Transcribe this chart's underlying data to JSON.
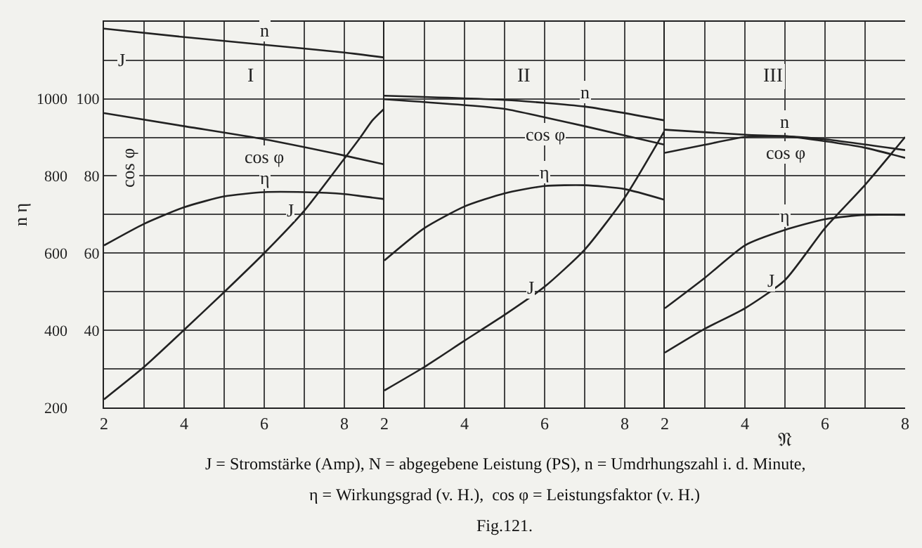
{
  "chart_data": [
    {
      "type": "line",
      "title": "I",
      "ylabel": "n η",
      "annotations": [
        "J",
        "cos φ"
      ],
      "xlim": [
        2,
        9
      ],
      "xticks": [
        2,
        {
          "value": 3,
          "label": null
        },
        4,
        {
          "value": 5,
          "label": null
        },
        6,
        {
          "value": 7,
          "label": null
        },
        8,
        {
          "value": 9,
          "label": null
        }
      ],
      "ylim": [
        200,
        1200
      ],
      "yticks": [
        200,
        {
          "value": 300,
          "label": null
        },
        400,
        {
          "value": 500,
          "label": null
        },
        600,
        {
          "value": 700,
          "label": null
        },
        800,
        {
          "value": 900,
          "label": null
        },
        1000,
        {
          "value": 1100,
          "label": null
        },
        {
          "value": 1200,
          "label": null
        }
      ],
      "y2lim": [
        20,
        120
      ],
      "y2ticks": [
        40,
        60,
        80,
        100
      ],
      "grid": true,
      "marker": "none",
      "line_style": "solid",
      "series": [
        {
          "name": "n",
          "color": "#222222",
          "x": [
            2,
            4,
            6,
            8,
            9
          ],
          "values": [
            1182,
            1160,
            1140,
            1120,
            1107
          ]
        },
        {
          "name": "cos φ",
          "color": "#222222",
          "axis": "y2",
          "x": [
            2,
            4,
            6,
            8,
            9
          ],
          "values": [
            96.3,
            92.9,
            89.5,
            85.3,
            83.0
          ]
        },
        {
          "name": "η",
          "color": "#222222",
          "axis": "y2",
          "x": [
            2,
            3,
            4,
            5,
            6,
            7,
            8,
            8.7,
            9
          ],
          "values": [
            62.0,
            67.6,
            71.9,
            74.7,
            75.8,
            75.8,
            75.3,
            74.4,
            74.0
          ]
        },
        {
          "name": "J",
          "color": "#222222",
          "x": [
            2,
            3,
            4,
            5,
            6,
            7,
            8,
            8.4,
            8.7,
            9
          ],
          "values": [
            221,
            305,
            401,
            499,
            600,
            710,
            845,
            900,
            944,
            975
          ]
        }
      ]
    },
    {
      "type": "line",
      "title": "II",
      "tick_labels": "x",
      "xlim": [
        2,
        9
      ],
      "xticks": [
        2,
        {
          "value": 3,
          "label": null
        },
        4,
        {
          "value": 5,
          "label": null
        },
        6,
        {
          "value": 7,
          "label": null
        },
        8,
        {
          "value": 9,
          "label": null
        }
      ],
      "ylim": [
        200,
        1200
      ],
      "yticks": [
        200,
        300,
        400,
        500,
        600,
        700,
        800,
        900,
        1000,
        1100,
        1200
      ],
      "y2lim": [
        20,
        120
      ],
      "y2ticks": [
        40,
        60,
        80,
        100
      ],
      "grid": true,
      "marker": "none",
      "line_style": "solid",
      "series": [
        {
          "name": "n",
          "color": "#222222",
          "x": [
            2,
            5,
            7,
            9
          ],
          "values": [
            1008,
            997,
            980,
            944
          ]
        },
        {
          "name": "cos φ",
          "color": "#222222",
          "axis": "y2",
          "x": [
            2,
            5,
            6,
            7,
            9
          ],
          "values": [
            99.9,
            97.4,
            95.2,
            92.9,
            88.1
          ]
        },
        {
          "name": "η",
          "color": "#222222",
          "axis": "y2",
          "x": [
            2,
            3,
            4,
            5,
            6,
            7,
            8,
            9
          ],
          "values": [
            58.1,
            66.5,
            72.1,
            75.5,
            77.4,
            77.6,
            76.6,
            73.8
          ]
        },
        {
          "name": "J",
          "color": "#222222",
          "x": [
            2,
            3,
            4,
            5,
            6,
            7,
            8,
            9
          ],
          "values": [
            244,
            305,
            373,
            440,
            513,
            609,
            744,
            918
          ]
        }
      ]
    },
    {
      "type": "line",
      "title": "III",
      "xlabel": "𝔑",
      "tick_labels": "x",
      "annotations": [
        "J = Stromstärke (Amp), N = abgegebene Leistung (PS), n = Umdrhungszahl i. d. Minute,",
        "η = Wirkungsgrad (v. H.),  cos φ = Leistungsfaktor (v. H.)",
        "Fig.121."
      ],
      "xlim": [
        2,
        8
      ],
      "xticks": [
        2,
        {
          "value": 3,
          "label": null
        },
        4,
        {
          "value": 5,
          "label": null
        },
        6,
        {
          "value": 7,
          "label": null
        },
        8
      ],
      "ylim": [
        200,
        1200
      ],
      "yticks": [
        200,
        300,
        400,
        500,
        600,
        700,
        800,
        900,
        1000,
        1100,
        1200
      ],
      "y2lim": [
        20,
        120
      ],
      "y2ticks": [
        40,
        60,
        80,
        100
      ],
      "grid": true,
      "marker": "none",
      "line_style": "solid",
      "series": [
        {
          "name": "n",
          "color": "#222222",
          "x": [
            2,
            4,
            5,
            6,
            8
          ],
          "values": [
            920,
            907,
            903,
            895,
            867
          ]
        },
        {
          "name": "cos φ",
          "color": "#222222",
          "axis": "y2",
          "x": [
            2,
            3,
            4,
            5,
            6,
            7,
            8
          ],
          "values": [
            86.0,
            88.1,
            90.1,
            90.3,
            89.0,
            87.3,
            84.7
          ]
        },
        {
          "name": "η",
          "color": "#222222",
          "axis": "y2",
          "x": [
            2,
            3,
            4,
            5,
            6,
            7,
            8
          ],
          "values": [
            45.7,
            53.6,
            62.0,
            66.0,
            68.8,
            69.9,
            69.9
          ]
        },
        {
          "name": "J",
          "color": "#222222",
          "x": [
            2,
            3,
            4,
            5,
            6,
            7,
            8
          ],
          "values": [
            342,
            404,
            457,
            530,
            665,
            777,
            901
          ]
        }
      ]
    }
  ]
}
